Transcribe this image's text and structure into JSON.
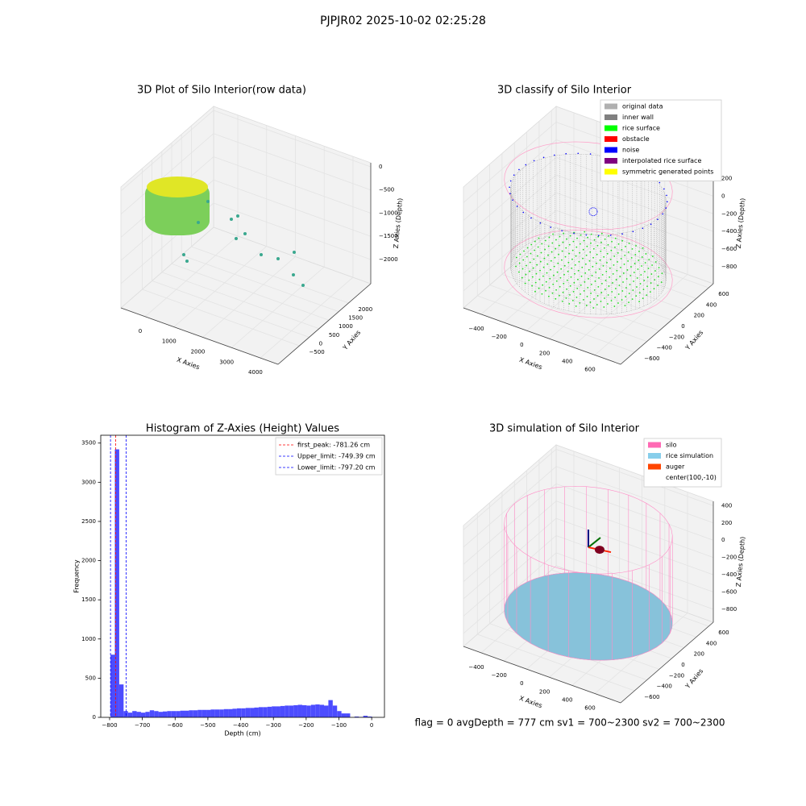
{
  "title": "PJPJR02 2025-10-02 02:25:28",
  "footer": "flag = 0     avgDepth = 777 cm  sv1 = 700~2300  sv2 = 700~2300",
  "chart_data": [
    {
      "type": "scatter3d",
      "title": "3D Plot of Silo Interior(row data)",
      "xlabel": "X Axies",
      "ylabel": "Y Axies",
      "zlabel": "Z Axies (Depth)",
      "xlim": [
        -840,
        4617
      ],
      "ylim": [
        -1585,
        3132
      ],
      "zlim": [
        -2522,
        86
      ],
      "xticks": [
        0,
        1000,
        2000,
        3000,
        4000
      ],
      "yticks": [
        {
          "value": -500,
          "label": "−500"
        },
        0,
        500,
        1000,
        1500,
        2000
      ],
      "zticks": [
        0,
        {
          "value": -500,
          "label": "−500"
        },
        {
          "value": -1000,
          "label": "−1000"
        },
        {
          "value": -1500,
          "label": "−1500"
        },
        {
          "value": -2000,
          "label": "−2000"
        }
      ]
    },
    {
      "type": "scatter3d",
      "title": "3D classify of Silo Interior",
      "xlabel": "X Axies",
      "ylabel": "Y Axies",
      "zlabel": "Z Axies (Depth)",
      "xlim": [
        -556,
        827
      ],
      "ylim": [
        -825,
        675
      ],
      "zlim": [
        -992,
        378
      ],
      "xticks": [
        {
          "value": -400,
          "label": "−400"
        },
        {
          "value": -200,
          "label": "−200"
        },
        0,
        200,
        400,
        600
      ],
      "yticks": [
        {
          "value": -600,
          "label": "−600"
        },
        {
          "value": -400,
          "label": "−400"
        },
        {
          "value": -200,
          "label": "−200"
        },
        0,
        200,
        400,
        600
      ],
      "zticks": [
        {
          "value": -800,
          "label": "−800"
        },
        {
          "value": -600,
          "label": "−600"
        },
        {
          "value": -400,
          "label": "−400"
        },
        {
          "value": -200,
          "label": "−200"
        },
        0,
        200
      ],
      "legend_loc": "upper right",
      "legend": [
        {
          "label": "original data",
          "color": "#b0b0b0"
        },
        {
          "label": "inner wall",
          "color": "#808080"
        },
        {
          "label": "rice surface",
          "color": "#00ff00"
        },
        {
          "label": "obstacle",
          "color": "#ff0000"
        },
        {
          "label": "noise",
          "color": "#0000ff"
        },
        {
          "label": "interpolated rice surface",
          "color": "#800080"
        },
        {
          "label": "symmetric generated points",
          "color": "#ffff00"
        }
      ]
    },
    {
      "type": "histogram",
      "title": "Histogram of Z-Axies (Height) Values",
      "xlabel": "Depth (cm)",
      "ylabel": "Frequency",
      "color": "#4c4cff",
      "xlim": [
        -827,
        39
      ],
      "ylim": [
        0,
        3600
      ],
      "xticks": [
        {
          "value": -800,
          "label": "−800"
        },
        {
          "value": -700,
          "label": "−700"
        },
        {
          "value": -600,
          "label": "−600"
        },
        {
          "value": -500,
          "label": "−500"
        },
        {
          "value": -400,
          "label": "−400"
        },
        {
          "value": -300,
          "label": "−300"
        },
        {
          "value": -200,
          "label": "−200"
        },
        {
          "value": -100,
          "label": "−100"
        },
        0
      ],
      "yticks": [
        0,
        500,
        1000,
        1500,
        2000,
        2500,
        3000,
        3500
      ],
      "bins": [
        -797.2,
        -783.9,
        -770.6,
        -757.3,
        -744.0,
        -730.7,
        -717.4,
        -704.1,
        -690.8,
        -677.5,
        -664.2,
        -650.9,
        -637.6,
        -624.3,
        -611.0,
        -597.7,
        -584.4,
        -571.1,
        -557.8,
        -544.5,
        -531.2,
        -517.9,
        -504.6,
        -491.3,
        -478.0,
        -464.7,
        -451.4,
        -438.1,
        -424.8,
        -411.5,
        -398.2,
        -384.9,
        -371.6,
        -358.3,
        -345.0,
        -331.7,
        -318.4,
        -305.1,
        -291.8,
        -278.5,
        -265.2,
        -251.9,
        -238.6,
        -225.3,
        -212.0,
        -198.7,
        -185.4,
        -172.1,
        -158.8,
        -145.5,
        -132.2,
        -118.9,
        -105.6,
        -92.3,
        -79.0,
        -65.7,
        -52.4,
        -39.1,
        -25.8,
        -12.5,
        0.8
      ],
      "values": [
        800,
        3420,
        420,
        80,
        60,
        80,
        70,
        60,
        70,
        90,
        80,
        70,
        75,
        80,
        80,
        80,
        85,
        85,
        90,
        90,
        95,
        95,
        95,
        100,
        100,
        100,
        105,
        105,
        110,
        115,
        115,
        120,
        120,
        125,
        130,
        130,
        135,
        140,
        140,
        145,
        150,
        150,
        155,
        160,
        155,
        150,
        160,
        165,
        160,
        150,
        220,
        150,
        80,
        50,
        50,
        0,
        10,
        5,
        20,
        10
      ],
      "legend_loc": "upper right",
      "lines": [
        {
          "label": "first_peak: -781.26 cm",
          "value": -781.26,
          "color": "#ff0000"
        },
        {
          "label": "Upper_limit: -749.39 cm",
          "value": -749.39,
          "color": "#0000ff"
        },
        {
          "label": "Lower_limit: -797.20 cm",
          "value": -797.2,
          "color": "#0000ff"
        }
      ]
    },
    {
      "type": "scatter3d",
      "title": "3D simulation of Silo Interior",
      "xlabel": "X Axies",
      "ylabel": "Y Axies",
      "zlabel": "Z Axies (Depth)",
      "xlim": [
        -556,
        827
      ],
      "ylim": [
        -825,
        675
      ],
      "zlim": [
        -950,
        450
      ],
      "xticks": [
        {
          "value": -400,
          "label": "−400"
        },
        {
          "value": -200,
          "label": "−200"
        },
        0,
        200,
        400,
        600
      ],
      "yticks": [
        {
          "value": -600,
          "label": "−600"
        },
        {
          "value": -400,
          "label": "−400"
        },
        {
          "value": -200,
          "label": "−200"
        },
        0,
        200,
        400,
        600
      ],
      "zticks": [
        {
          "value": -800,
          "label": "−800"
        },
        {
          "value": -600,
          "label": "−600"
        },
        {
          "value": -400,
          "label": "−400"
        },
        {
          "value": -200,
          "label": "−200"
        },
        0,
        200,
        400
      ],
      "legend_loc": "upper right",
      "legend": [
        {
          "label": "silo",
          "color": "#ff69b4"
        },
        {
          "label": "rice simulation",
          "color": "#87ceeb"
        },
        {
          "label": "auger",
          "color": "#ff4500"
        },
        {
          "label": "center(100,-10)"
        }
      ]
    }
  ]
}
